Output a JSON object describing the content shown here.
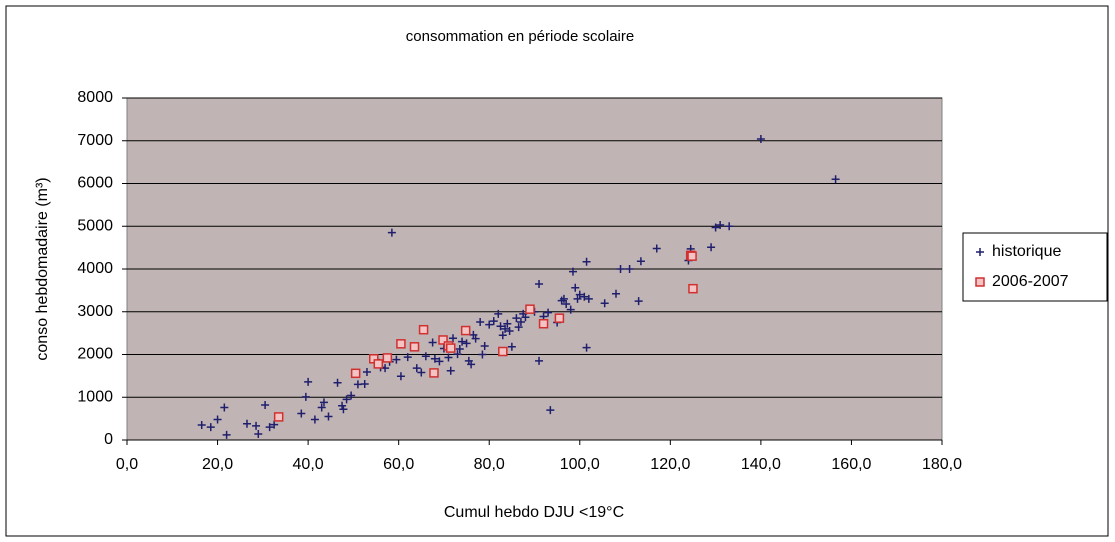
{
  "chart_data": {
    "type": "scatter",
    "title": "consommation en période scolaire",
    "x_label": "Cumul hebdo DJU <19°C",
    "y_label": "conso hebdomadaire (m³)",
    "xlim": [
      0,
      180
    ],
    "ylim": [
      0,
      8000
    ],
    "xticks": [
      {
        "value": 0,
        "label": "0,0"
      },
      {
        "value": 20,
        "label": "20,0"
      },
      {
        "value": 40,
        "label": "40,0"
      },
      {
        "value": 60,
        "label": "60,0"
      },
      {
        "value": 80,
        "label": "80,0"
      },
      {
        "value": 100,
        "label": "100,0"
      },
      {
        "value": 120,
        "label": "120,0"
      },
      {
        "value": 140,
        "label": "140,0"
      },
      {
        "value": 160,
        "label": "160,0"
      },
      {
        "value": 180,
        "label": "180,0"
      }
    ],
    "yticks": [
      0,
      1000,
      2000,
      3000,
      4000,
      5000,
      6000,
      7000,
      8000
    ],
    "grid": true,
    "legend": "right",
    "series": [
      {
        "name": "historique",
        "color": "#1f1f6e",
        "marker": "plus",
        "x": [
          16.5,
          18.5,
          20,
          21.5,
          22,
          26.5,
          28.5,
          29,
          30.5,
          31.5,
          32.5,
          38.5,
          39.5,
          40,
          41.5,
          43,
          43.5,
          44.5,
          46.5,
          47.5,
          47.8,
          48.5,
          49.5,
          51,
          52.5,
          53,
          55,
          56,
          57,
          58,
          58.5,
          59.5,
          60.5,
          62,
          64,
          65,
          66,
          67.5,
          68,
          69,
          70,
          71,
          71.5,
          72,
          73,
          73.5,
          74,
          75,
          75.5,
          76,
          76.5,
          77,
          78,
          78.5,
          79,
          80,
          81,
          82,
          82.5,
          83,
          83.5,
          84,
          84.5,
          85,
          86,
          86.5,
          87,
          87.5,
          88,
          90,
          91,
          91,
          92,
          93,
          93.5,
          95,
          96,
          96.5,
          97,
          98,
          98.5,
          99,
          99.5,
          100,
          101,
          101.5,
          101.5,
          102,
          105.5,
          108,
          109,
          111,
          113,
          113.5,
          117,
          124,
          124.5,
          129,
          130,
          131,
          133,
          140,
          156.5
        ],
        "values": [
          350,
          300,
          480,
          760,
          120,
          380,
          330,
          140,
          820,
          300,
          360,
          620,
          1010,
          1360,
          480,
          760,
          880,
          550,
          1340,
          800,
          720,
          950,
          1040,
          1300,
          1310,
          1590,
          1880,
          1700,
          1680,
          1830,
          4850,
          1880,
          1490,
          1940,
          1680,
          1580,
          1960,
          2280,
          1900,
          1840,
          2140,
          1930,
          1620,
          2380,
          2010,
          2130,
          2300,
          2260,
          1850,
          1770,
          2460,
          2370,
          2760,
          2000,
          2200,
          2700,
          2780,
          2950,
          2660,
          2450,
          2600,
          2720,
          2550,
          2180,
          2850,
          2640,
          2760,
          2950,
          2870,
          3000,
          3650,
          1850,
          2890,
          2980,
          700,
          2750,
          3260,
          3300,
          3180,
          3050,
          3940,
          3560,
          3300,
          3400,
          3350,
          4170,
          2160,
          3300,
          3200,
          3420,
          4000,
          4000,
          3250,
          4180,
          4480,
          4200,
          4470,
          4510,
          4970,
          5030,
          5000,
          7040,
          6100
        ]
      },
      {
        "name": "2006-2007",
        "color": "#d03030",
        "marker": "square",
        "x": [
          33.5,
          50.5,
          54.5,
          55.5,
          57.5,
          60.5,
          63.5,
          65.5,
          67.8,
          69.8,
          71,
          71.5,
          74.8,
          83,
          89,
          92,
          95.5,
          124.5,
          125,
          124.8
        ],
        "values": [
          540,
          1560,
          1900,
          1780,
          1920,
          2250,
          2180,
          2580,
          1570,
          2340,
          2200,
          2150,
          2560,
          2070,
          3060,
          2720,
          2850,
          4320,
          3540,
          4300
        ]
      }
    ]
  }
}
